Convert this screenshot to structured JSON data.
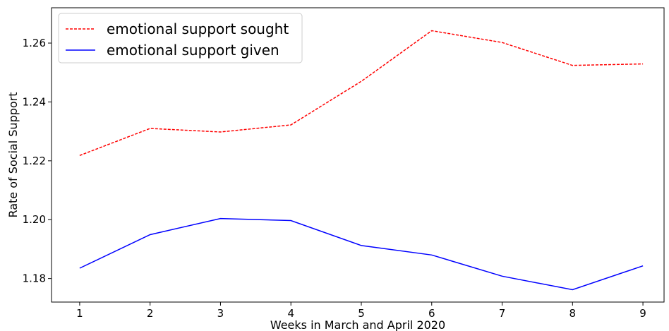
{
  "chart_data": {
    "type": "line",
    "title": "",
    "xlabel": "Weeks in March and April 2020",
    "ylabel": "Rate of Social Support",
    "x": [
      1,
      2,
      3,
      4,
      5,
      6,
      7,
      8,
      9
    ],
    "xlim": [
      0.6,
      9.3
    ],
    "ylim": [
      1.172,
      1.272
    ],
    "x_ticks": [
      "1",
      "2",
      "3",
      "4",
      "5",
      "6",
      "7",
      "8",
      "9"
    ],
    "y_ticks": [
      {
        "value": 1.18,
        "label": "1.18"
      },
      {
        "value": 1.2,
        "label": "1.20"
      },
      {
        "value": 1.22,
        "label": "1.22"
      },
      {
        "value": 1.24,
        "label": "1.24"
      },
      {
        "value": 1.26,
        "label": "1.26"
      }
    ],
    "grid": false,
    "legend_position": "top-left",
    "series": [
      {
        "name": "emotional support sought",
        "color": "#ff0000",
        "style": "dashed",
        "values": [
          1.2218,
          1.231,
          1.2298,
          1.2322,
          1.247,
          1.2642,
          1.2602,
          1.2524,
          1.2529
        ]
      },
      {
        "name": "emotional support given",
        "color": "#0000ff",
        "style": "solid",
        "values": [
          1.1835,
          1.1949,
          1.2004,
          1.1997,
          1.1912,
          1.188,
          1.1808,
          1.1762,
          1.1843
        ]
      }
    ]
  }
}
